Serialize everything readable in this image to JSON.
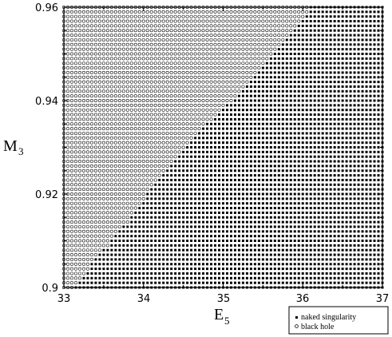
{
  "chart_data": {
    "type": "scatter",
    "xlabel": {
      "main": "E",
      "sub": "5"
    },
    "ylabel": {
      "main": "M",
      "sub": "3"
    },
    "xlim": [
      33,
      37
    ],
    "ylim": [
      0.9,
      0.96
    ],
    "x_ticks": [
      "33",
      "34",
      "35",
      "36",
      "37"
    ],
    "y_ticks": [
      "0.9",
      "0.92",
      "0.94",
      "0.96"
    ],
    "grid": {
      "x_start": 33,
      "x_end": 37,
      "x_step": 0.05,
      "y_start": 0.9,
      "y_end": 0.96,
      "y_step": 0.001
    },
    "boundary": {
      "description": "points with E5 below the boundary value for a given M3 are black holes; otherwise naked singularities",
      "points": [
        {
          "M3": 0.9,
          "E5": 33.15
        },
        {
          "M3": 0.905,
          "E5": 33.35
        },
        {
          "M3": 0.91,
          "E5": 33.6
        },
        {
          "M3": 0.915,
          "E5": 33.85
        },
        {
          "M3": 0.92,
          "E5": 34.05
        },
        {
          "M3": 0.925,
          "E5": 34.3
        },
        {
          "M3": 0.93,
          "E5": 34.55
        },
        {
          "M3": 0.935,
          "E5": 34.8
        },
        {
          "M3": 0.94,
          "E5": 35.1
        },
        {
          "M3": 0.945,
          "E5": 35.35
        },
        {
          "M3": 0.95,
          "E5": 35.6
        },
        {
          "M3": 0.955,
          "E5": 35.85
        },
        {
          "M3": 0.96,
          "E5": 36.1
        }
      ]
    },
    "series": [
      {
        "name": "naked singularity",
        "marker": "filled-square",
        "color": "#000000"
      },
      {
        "name": "black hole",
        "marker": "open-circle",
        "color": "#000000"
      }
    ],
    "legend_position": "bottom-right-outside"
  }
}
